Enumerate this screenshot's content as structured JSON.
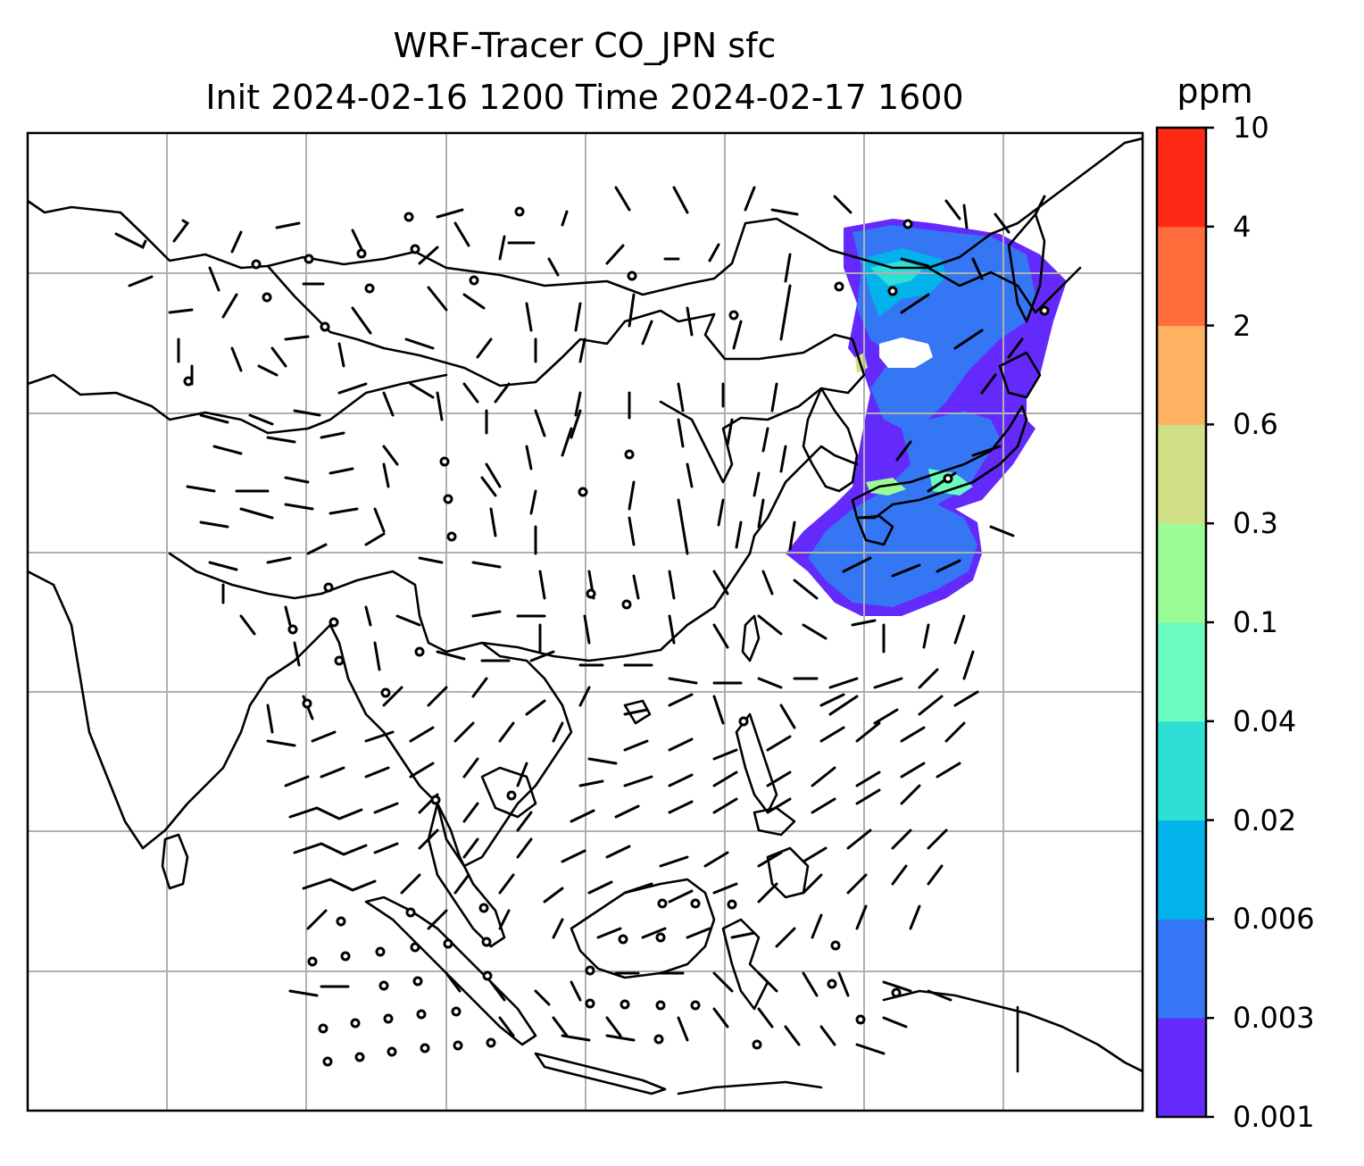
{
  "title": {
    "line1": "WRF-Tracer CO_JPN sfc",
    "line2": "Init 2024-02-16 1200 Time 2024-02-17 1600"
  },
  "colorbar": {
    "unit": "ppm",
    "levels": [
      "0.001",
      "0.003",
      "0.006",
      "0.02",
      "0.04",
      "0.1",
      "0.3",
      "0.6",
      "2",
      "4",
      "10"
    ],
    "colors": [
      "#6429fb",
      "#3476f4",
      "#02b2ea",
      "#2ddfd4",
      "#6afbc1",
      "#9bfb97",
      "#d0e084",
      "#feb160",
      "#fe6d3b",
      "#fe2a16"
    ]
  },
  "map": {
    "gridline_color": "#b0b0b0",
    "coastline_color": "#000000",
    "wind_barb_color": "#000000"
  }
}
